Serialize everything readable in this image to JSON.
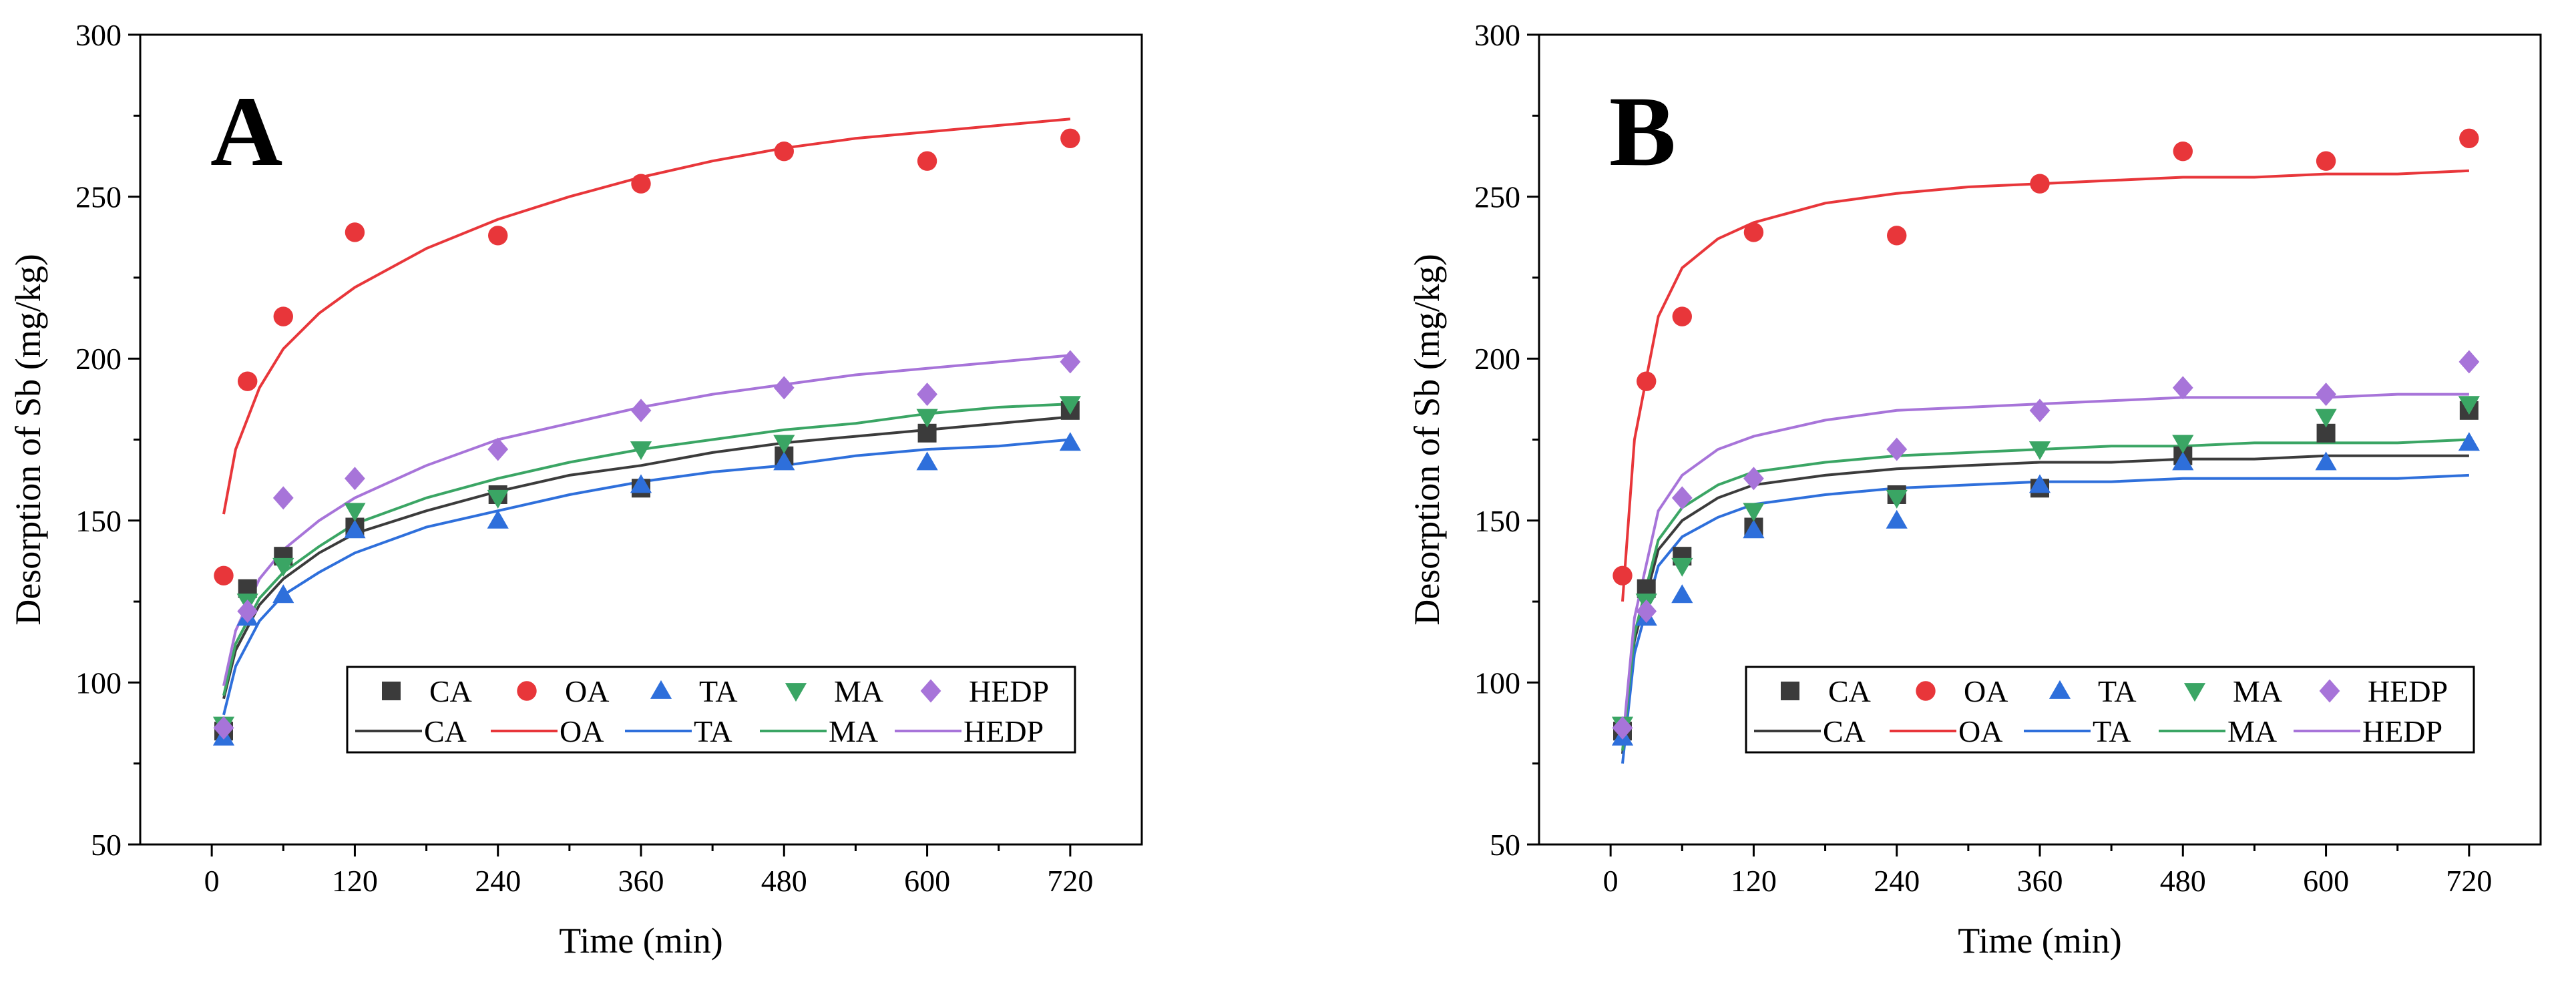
{
  "chart_data": [
    {
      "type": "scatter",
      "panel_label": "A",
      "xlabel": "Time (min)",
      "ylabel": "Desorption of Sb (mg/kg)",
      "xlim": [
        -60,
        780
      ],
      "ylim": [
        50,
        300
      ],
      "xticks": [
        0,
        120,
        240,
        360,
        480,
        600,
        720
      ],
      "yticks": [
        50,
        100,
        150,
        200,
        250,
        300
      ],
      "x": [
        10,
        30,
        60,
        120,
        240,
        360,
        480,
        600,
        720
      ],
      "series": [
        {
          "name": "CA",
          "marker": "square",
          "color": "#3b3b3b",
          "values": [
            85,
            129,
            139,
            148,
            158,
            160,
            170,
            177,
            184
          ]
        },
        {
          "name": "OA",
          "marker": "circle",
          "color": "#e8363a",
          "values": [
            133,
            193,
            213,
            239,
            238,
            254,
            264,
            261,
            268
          ]
        },
        {
          "name": "TA",
          "marker": "triangle-up",
          "color": "#2e6fdb",
          "values": [
            83,
            120,
            127,
            147,
            150,
            161,
            168,
            168,
            174
          ]
        },
        {
          "name": "MA",
          "marker": "triangle-down",
          "color": "#3aa564",
          "values": [
            87,
            125,
            136,
            153,
            157,
            172,
            174,
            182,
            186
          ]
        },
        {
          "name": "HEDP",
          "marker": "diamond",
          "color": "#a774d9",
          "values": [
            86,
            122,
            157,
            163,
            172,
            184,
            191,
            189,
            199
          ]
        }
      ],
      "fits": [
        {
          "name": "CA",
          "color": "#3b3b3b",
          "x": [
            10,
            20,
            40,
            60,
            90,
            120,
            180,
            240,
            300,
            360,
            420,
            480,
            540,
            600,
            660,
            720
          ],
          "values": [
            95,
            110,
            124,
            132,
            140,
            146,
            153,
            159,
            164,
            167,
            171,
            174,
            176,
            178,
            180,
            182
          ]
        },
        {
          "name": "OA",
          "color": "#e8363a",
          "x": [
            10,
            20,
            40,
            60,
            90,
            120,
            180,
            240,
            300,
            360,
            420,
            480,
            540,
            600,
            660,
            720
          ],
          "values": [
            152,
            172,
            191,
            203,
            214,
            222,
            234,
            243,
            250,
            256,
            261,
            265,
            268,
            270,
            272,
            274
          ]
        },
        {
          "name": "TA",
          "color": "#2e6fdb",
          "x": [
            10,
            20,
            40,
            60,
            90,
            120,
            180,
            240,
            300,
            360,
            420,
            480,
            540,
            600,
            660,
            720
          ],
          "values": [
            90,
            105,
            119,
            127,
            134,
            140,
            148,
            153,
            158,
            162,
            165,
            167,
            170,
            172,
            173,
            175
          ]
        },
        {
          "name": "MA",
          "color": "#3aa564",
          "x": [
            10,
            20,
            40,
            60,
            90,
            120,
            180,
            240,
            300,
            360,
            420,
            480,
            540,
            600,
            660,
            720
          ],
          "values": [
            96,
            112,
            126,
            134,
            142,
            149,
            157,
            163,
            168,
            172,
            175,
            178,
            180,
            183,
            185,
            186
          ]
        },
        {
          "name": "HEDP",
          "color": "#a774d9",
          "x": [
            10,
            20,
            40,
            60,
            90,
            120,
            180,
            240,
            300,
            360,
            420,
            480,
            540,
            600,
            660,
            720
          ],
          "values": [
            99,
            116,
            132,
            141,
            150,
            157,
            167,
            175,
            180,
            185,
            189,
            192,
            195,
            197,
            199,
            201
          ]
        }
      ],
      "legend": {
        "position": "lower-right",
        "markers": [
          "CA",
          "OA",
          "TA",
          "MA",
          "HEDP"
        ],
        "lines": [
          "CA",
          "OA",
          "TA",
          "MA",
          "HEDP"
        ]
      }
    },
    {
      "type": "scatter",
      "panel_label": "B",
      "xlabel": "Time (min)",
      "ylabel": "Desorption of Sb (mg/kg)",
      "xlim": [
        -60,
        780
      ],
      "ylim": [
        50,
        300
      ],
      "xticks": [
        0,
        120,
        240,
        360,
        480,
        600,
        720
      ],
      "yticks": [
        50,
        100,
        150,
        200,
        250,
        300
      ],
      "x": [
        10,
        30,
        60,
        120,
        240,
        360,
        480,
        600,
        720
      ],
      "series": [
        {
          "name": "CA",
          "marker": "square",
          "color": "#3b3b3b",
          "values": [
            85,
            129,
            139,
            148,
            158,
            160,
            170,
            177,
            184
          ]
        },
        {
          "name": "OA",
          "marker": "circle",
          "color": "#e8363a",
          "values": [
            133,
            193,
            213,
            239,
            238,
            254,
            264,
            261,
            268
          ]
        },
        {
          "name": "TA",
          "marker": "triangle-up",
          "color": "#2e6fdb",
          "values": [
            83,
            120,
            127,
            147,
            150,
            161,
            168,
            168,
            174
          ]
        },
        {
          "name": "MA",
          "marker": "triangle-down",
          "color": "#3aa564",
          "values": [
            87,
            125,
            136,
            153,
            157,
            172,
            174,
            182,
            186
          ]
        },
        {
          "name": "HEDP",
          "marker": "diamond",
          "color": "#a774d9",
          "values": [
            86,
            122,
            157,
            163,
            172,
            184,
            191,
            189,
            199
          ]
        }
      ],
      "fits": [
        {
          "name": "CA",
          "color": "#3b3b3b",
          "x": [
            10,
            20,
            40,
            60,
            90,
            120,
            180,
            240,
            300,
            360,
            420,
            480,
            540,
            600,
            660,
            720
          ],
          "values": [
            78,
            113,
            141,
            150,
            157,
            161,
            164,
            166,
            167,
            168,
            168,
            169,
            169,
            170,
            170,
            170
          ]
        },
        {
          "name": "OA",
          "color": "#e8363a",
          "x": [
            10,
            20,
            40,
            60,
            90,
            120,
            180,
            240,
            300,
            360,
            420,
            480,
            540,
            600,
            660,
            720
          ],
          "values": [
            125,
            175,
            213,
            228,
            237,
            242,
            248,
            251,
            253,
            254,
            255,
            256,
            256,
            257,
            257,
            258
          ]
        },
        {
          "name": "TA",
          "color": "#2e6fdb",
          "x": [
            10,
            20,
            40,
            60,
            90,
            120,
            180,
            240,
            300,
            360,
            420,
            480,
            540,
            600,
            660,
            720
          ],
          "values": [
            75,
            109,
            136,
            145,
            151,
            155,
            158,
            160,
            161,
            162,
            162,
            163,
            163,
            163,
            163,
            164
          ]
        },
        {
          "name": "MA",
          "color": "#3aa564",
          "x": [
            10,
            20,
            40,
            60,
            90,
            120,
            180,
            240,
            300,
            360,
            420,
            480,
            540,
            600,
            660,
            720
          ],
          "values": [
            79,
            115,
            144,
            154,
            161,
            165,
            168,
            170,
            171,
            172,
            173,
            173,
            174,
            174,
            174,
            175
          ]
        },
        {
          "name": "HEDP",
          "color": "#a774d9",
          "x": [
            10,
            20,
            40,
            60,
            90,
            120,
            180,
            240,
            300,
            360,
            420,
            480,
            540,
            600,
            660,
            720
          ],
          "values": [
            81,
            120,
            153,
            164,
            172,
            176,
            181,
            184,
            185,
            186,
            187,
            188,
            188,
            188,
            189,
            189
          ]
        }
      ],
      "legend": {
        "position": "lower-right",
        "markers": [
          "CA",
          "OA",
          "TA",
          "MA",
          "HEDP"
        ],
        "lines": [
          "CA",
          "OA",
          "TA",
          "MA",
          "HEDP"
        ]
      }
    }
  ]
}
